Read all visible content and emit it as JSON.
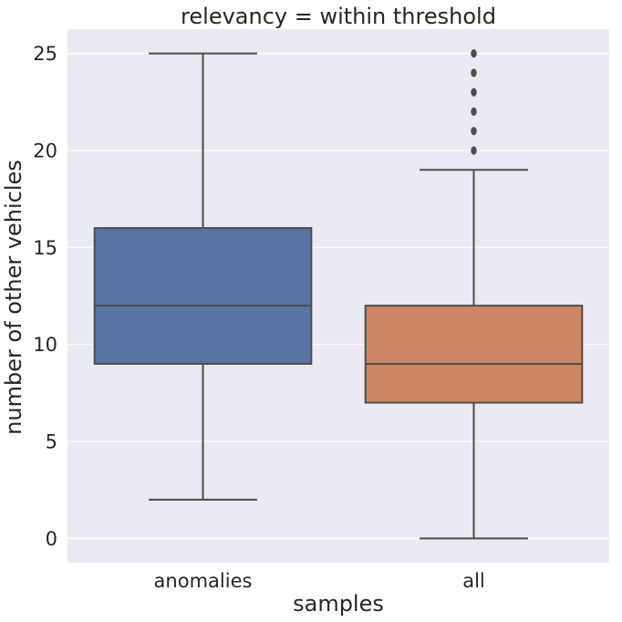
{
  "chart_data": {
    "type": "box",
    "title": "relevancy = within threshold",
    "xlabel": "samples",
    "ylabel": "number of other vehicles",
    "categories": [
      "anomalies",
      "all"
    ],
    "ylim": [
      -1.25,
      26.25
    ],
    "yticks": [
      0,
      5,
      10,
      15,
      20,
      25
    ],
    "grid": true,
    "background_color": "#eaeaf2",
    "grid_color": "#ffffff",
    "line_color": "#4d4d4d",
    "boxes": [
      {
        "category": "anomalies",
        "color": "#5874a4",
        "whisker_low": 2,
        "q1": 9,
        "median": 12,
        "q3": 16,
        "whisker_high": 25,
        "outliers": []
      },
      {
        "category": "all",
        "color": "#cd8762",
        "whisker_low": 0,
        "q1": 7,
        "median": 9,
        "q3": 12,
        "whisker_high": 19,
        "outliers": [
          20,
          21,
          22,
          23,
          24,
          25
        ]
      }
    ]
  }
}
